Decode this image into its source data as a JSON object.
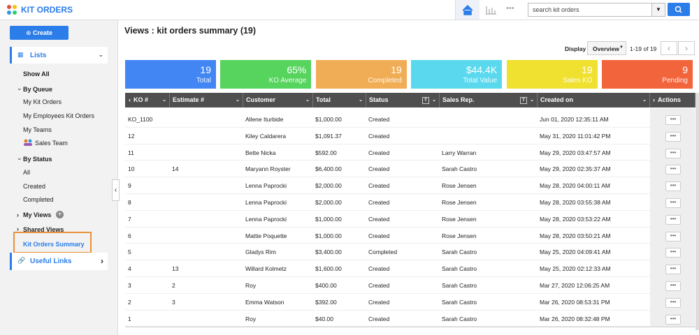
{
  "header": {
    "logo": "KIT ORDERS",
    "search_placeholder": "search kit orders"
  },
  "sidebar": {
    "create": "Create",
    "lists": "Lists",
    "show_all": "Show All",
    "by_queue": {
      "label": "By Queue",
      "items": [
        "My Kit Orders",
        "My Employees Kit Orders",
        "My Teams",
        "Sales Team"
      ]
    },
    "by_status": {
      "label": "By Status",
      "items": [
        "All",
        "Created",
        "Completed"
      ]
    },
    "my_views": "My Views",
    "shared_views": {
      "label": "Shared Views",
      "items": [
        "Kit Orders Summary"
      ]
    },
    "useful_links": "Useful Links"
  },
  "main": {
    "title": "Views : kit orders summary (19)",
    "display_label": "Display",
    "display_option": "Overview",
    "pagination": "1-19 of 19",
    "cards": [
      {
        "value": "19",
        "label": "Total",
        "color": "#4286f4"
      },
      {
        "value": "65%",
        "label": "KO Average",
        "color": "#57d45e"
      },
      {
        "value": "19",
        "label": "Completed",
        "color": "#f0ad55"
      },
      {
        "value": "$44.4K",
        "label": "Total Value",
        "color": "#5ad9ee"
      },
      {
        "value": "19",
        "label": "Sales KO",
        "color": "#f0e130"
      },
      {
        "value": "9",
        "label": "Pending",
        "color": "#f2643c"
      }
    ],
    "table": {
      "columns": [
        "KO #",
        "Estimate #",
        "Customer",
        "Total",
        "Status",
        "Sales Rep.",
        "Created on",
        "Actions"
      ],
      "rows": [
        [
          "KO_1100",
          null,
          "Allene Iturbide",
          "$1,000.00",
          "Created",
          null,
          "Jun 01, 2020 12:35:11 AM"
        ],
        [
          "12",
          null,
          "Kiley Caldarera",
          "$1,091.37",
          "Created",
          null,
          "May 31, 2020 11:01:42 PM"
        ],
        [
          "11",
          null,
          "Bette Nicka",
          "$592.00",
          "Created",
          "Larry Warran",
          "May 29, 2020 03:47:57 AM"
        ],
        [
          "10",
          "14",
          "Maryann Royster",
          "$6,400.00",
          "Created",
          "Sarah Castro",
          "May 29, 2020 02:35:37 AM"
        ],
        [
          "9",
          null,
          "Lenna Paprocki",
          "$2,000.00",
          "Created",
          "Rose Jensen",
          "May 28, 2020 04:00:11 AM"
        ],
        [
          "8",
          null,
          "Lenna Paprocki",
          "$2,000.00",
          "Created",
          "Rose Jensen",
          "May 28, 2020 03:55:38 AM"
        ],
        [
          "7",
          null,
          "Lenna Paprocki",
          "$1,000.00",
          "Created",
          "Rose Jensen",
          "May 28, 2020 03:53:22 AM"
        ],
        [
          "6",
          null,
          "Mattie Poquette",
          "$1,000.00",
          "Created",
          "Rose Jensen",
          "May 28, 2020 03:50:21 AM"
        ],
        [
          "5",
          null,
          "Gladys Rim",
          "$3,400.00",
          "Completed",
          "Sarah Castro",
          "May 25, 2020 04:09:41 AM"
        ],
        [
          "4",
          "13",
          "Willard Kolmetz",
          "$1,600.00",
          "Created",
          "Sarah Castro",
          "May 25, 2020 02:12:33 AM"
        ],
        [
          "3",
          "2",
          "Roy",
          "$400.00",
          "Created",
          "Sarah Castro",
          "Mar 27, 2020 12:06:25 AM"
        ],
        [
          "2",
          "3",
          "Emma Watson",
          "$392.00",
          "Created",
          "Sarah Castro",
          "Mar 26, 2020 08:53:31 PM"
        ],
        [
          "1",
          null,
          "Roy",
          "$40.00",
          "Created",
          "Sarah Castro",
          "Mar 26, 2020 08:32:48 PM"
        ]
      ]
    }
  }
}
